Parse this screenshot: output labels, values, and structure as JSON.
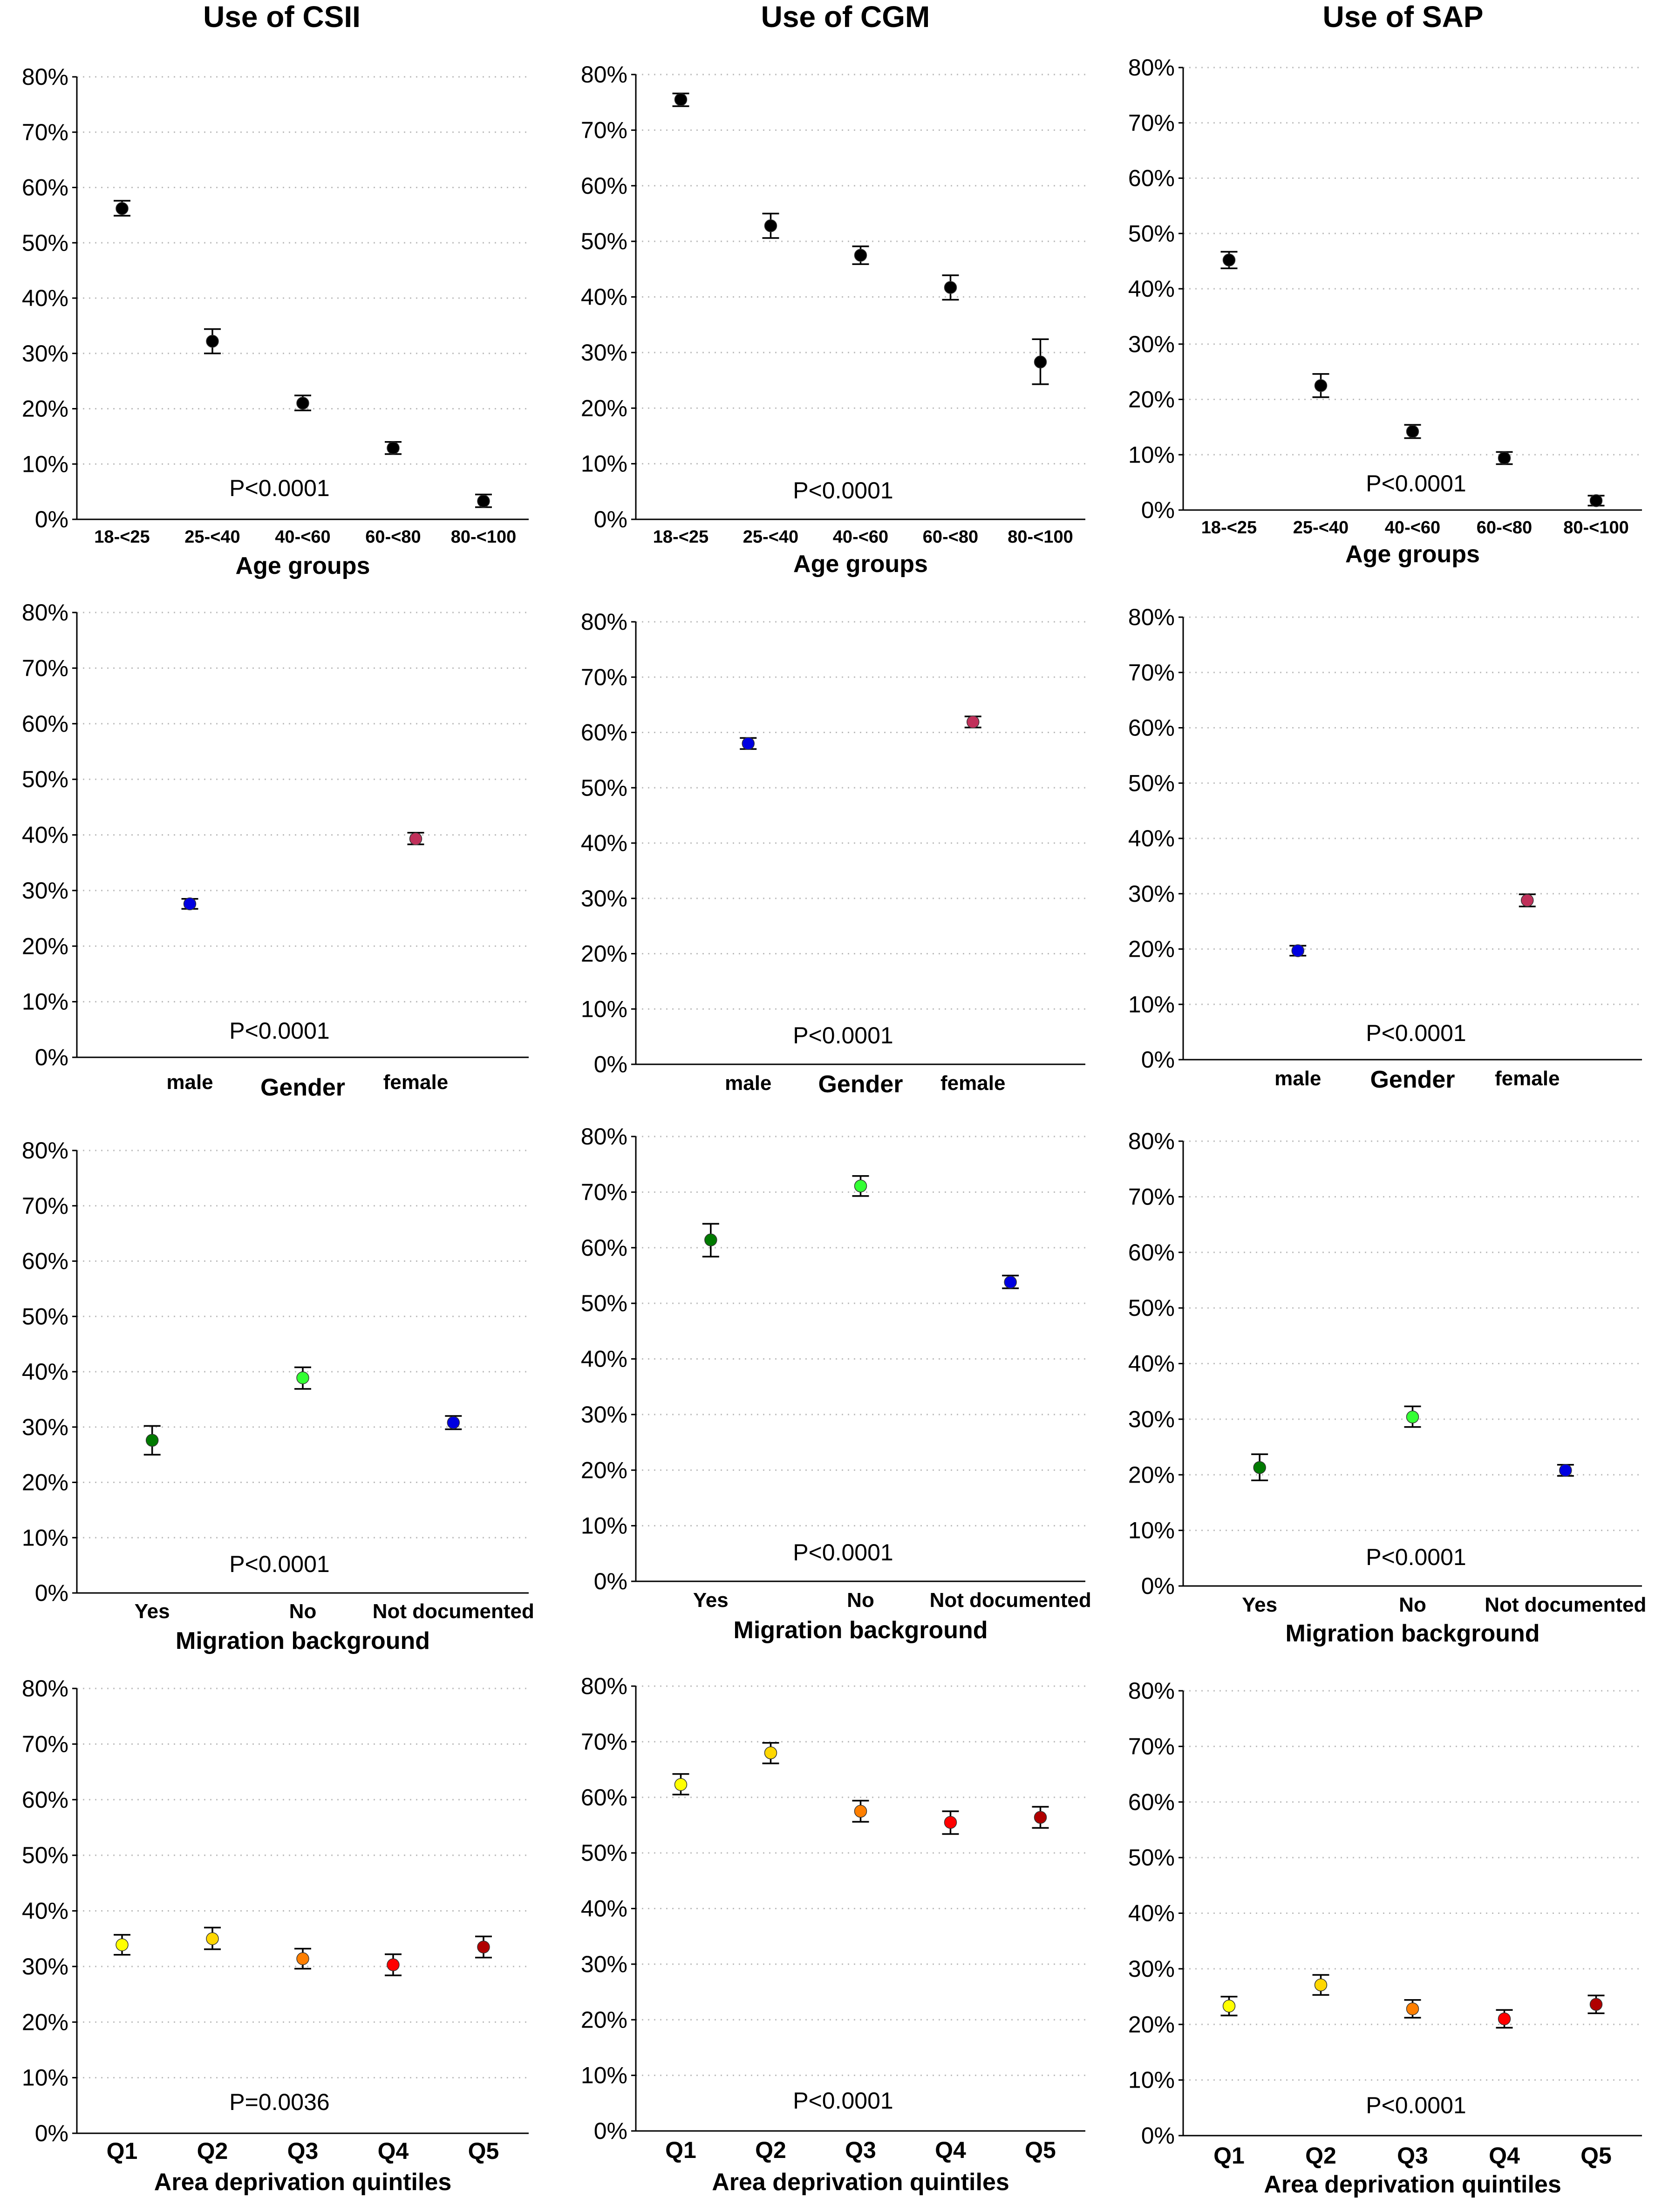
{
  "figure": {
    "column_titles": [
      "Use of CSII",
      "Use of CGM",
      "Use of SAP"
    ]
  },
  "chart_data": [
    {
      "type": "scatter",
      "panel": "CSII-age",
      "title": "Use of CSII",
      "xlabel": "Age groups",
      "ylim": [
        0,
        80
      ],
      "yticks": [
        "0%",
        "10%",
        "20%",
        "30%",
        "40%",
        "50%",
        "60%",
        "70%",
        "80%"
      ],
      "categories": [
        "18-<25",
        "25-<40",
        "40-<60",
        "60-<80",
        "80-<100"
      ],
      "values": [
        56.2,
        32.2,
        21.0,
        12.9,
        3.3
      ],
      "lower": [
        54.9,
        30.0,
        19.7,
        11.8,
        2.2
      ],
      "upper": [
        57.6,
        34.4,
        22.4,
        14.0,
        4.5
      ],
      "colors": [
        "#000000",
        "#000000",
        "#000000",
        "#000000",
        "#000000"
      ],
      "pvalue": "P<0.0001"
    },
    {
      "type": "scatter",
      "panel": "CGM-age",
      "title": "Use of CGM",
      "xlabel": "Age groups",
      "ylim": [
        0,
        80
      ],
      "yticks": [
        "0%",
        "10%",
        "20%",
        "30%",
        "40%",
        "50%",
        "60%",
        "70%",
        "80%"
      ],
      "categories": [
        "18-<25",
        "25-<40",
        "40-<60",
        "60-<80",
        "80-<100"
      ],
      "values": [
        75.5,
        52.8,
        47.5,
        41.7,
        28.3
      ],
      "lower": [
        74.3,
        50.6,
        45.9,
        39.5,
        24.3
      ],
      "upper": [
        76.6,
        55.0,
        49.1,
        43.9,
        32.4
      ],
      "colors": [
        "#000000",
        "#000000",
        "#000000",
        "#000000",
        "#000000"
      ],
      "pvalue": "P<0.0001"
    },
    {
      "type": "scatter",
      "panel": "SAP-age",
      "title": "Use of SAP",
      "xlabel": "Age groups",
      "ylim": [
        0,
        80
      ],
      "yticks": [
        "0%",
        "10%",
        "20%",
        "30%",
        "40%",
        "50%",
        "60%",
        "70%",
        "80%"
      ],
      "categories": [
        "18-<25",
        "25-<40",
        "40-<60",
        "60-<80",
        "80-<100"
      ],
      "values": [
        45.2,
        22.5,
        14.2,
        9.4,
        1.7
      ],
      "lower": [
        43.7,
        20.4,
        13.0,
        8.3,
        0.8
      ],
      "upper": [
        46.7,
        24.6,
        15.4,
        10.5,
        2.6
      ],
      "colors": [
        "#000000",
        "#000000",
        "#000000",
        "#000000",
        "#000000"
      ],
      "pvalue": "P<0.0001"
    },
    {
      "type": "scatter",
      "panel": "CSII-gender",
      "xlabel": "Gender",
      "ylim": [
        0,
        80
      ],
      "yticks": [
        "0%",
        "10%",
        "20%",
        "30%",
        "40%",
        "50%",
        "60%",
        "70%",
        "80%"
      ],
      "categories": [
        "male",
        "female"
      ],
      "values": [
        27.6,
        39.3
      ],
      "lower": [
        26.7,
        38.3
      ],
      "upper": [
        28.5,
        40.4
      ],
      "colors": [
        "#0000e0",
        "#c0305a"
      ],
      "pvalue": "P<0.0001"
    },
    {
      "type": "scatter",
      "panel": "CGM-gender",
      "xlabel": "Gender",
      "ylim": [
        0,
        80
      ],
      "yticks": [
        "0%",
        "10%",
        "20%",
        "30%",
        "40%",
        "50%",
        "60%",
        "70%",
        "80%"
      ],
      "categories": [
        "male",
        "female"
      ],
      "values": [
        58.0,
        61.9
      ],
      "lower": [
        57.0,
        60.9
      ],
      "upper": [
        59.0,
        62.9
      ],
      "colors": [
        "#0000e0",
        "#c0305a"
      ],
      "pvalue": "P<0.0001"
    },
    {
      "type": "scatter",
      "panel": "SAP-gender",
      "xlabel": "Gender",
      "ylim": [
        0,
        80
      ],
      "yticks": [
        "0%",
        "10%",
        "20%",
        "30%",
        "40%",
        "50%",
        "60%",
        "70%",
        "80%"
      ],
      "categories": [
        "male",
        "female"
      ],
      "values": [
        19.7,
        28.8
      ],
      "lower": [
        18.8,
        27.7
      ],
      "upper": [
        20.6,
        29.9
      ],
      "colors": [
        "#0000e0",
        "#c0305a"
      ],
      "pvalue": "P<0.0001"
    },
    {
      "type": "scatter",
      "panel": "CSII-migration",
      "xlabel": "Migration background",
      "ylim": [
        0,
        80
      ],
      "yticks": [
        "0%",
        "10%",
        "20%",
        "30%",
        "40%",
        "50%",
        "60%",
        "70%",
        "80%"
      ],
      "categories": [
        "Yes",
        "No",
        "Not documented"
      ],
      "values": [
        27.6,
        38.9,
        30.8
      ],
      "lower": [
        25.0,
        36.9,
        29.6
      ],
      "upper": [
        30.2,
        40.8,
        32.0
      ],
      "colors": [
        "#007a00",
        "#33ff33",
        "#0000e0"
      ],
      "pvalue": "P<0.0001"
    },
    {
      "type": "scatter",
      "panel": "CGM-migration",
      "xlabel": "Migration background",
      "ylim": [
        0,
        80
      ],
      "yticks": [
        "0%",
        "10%",
        "20%",
        "30%",
        "40%",
        "50%",
        "60%",
        "70%",
        "80%"
      ],
      "categories": [
        "Yes",
        "No",
        "Not documented"
      ],
      "values": [
        61.4,
        71.1,
        53.8
      ],
      "lower": [
        58.4,
        69.3,
        52.7
      ],
      "upper": [
        64.3,
        72.9,
        55.0
      ],
      "colors": [
        "#007a00",
        "#33ff33",
        "#0000e0"
      ],
      "pvalue": "P<0.0001"
    },
    {
      "type": "scatter",
      "panel": "SAP-migration",
      "xlabel": "Migration background",
      "ylim": [
        0,
        80
      ],
      "yticks": [
        "0%",
        "10%",
        "20%",
        "30%",
        "40%",
        "50%",
        "60%",
        "70%",
        "80%"
      ],
      "categories": [
        "Yes",
        "No",
        "Not documented"
      ],
      "values": [
        21.3,
        30.4,
        20.8
      ],
      "lower": [
        19.0,
        28.6,
        19.8
      ],
      "upper": [
        23.7,
        32.3,
        21.8
      ],
      "colors": [
        "#007a00",
        "#33ff33",
        "#0000e0"
      ],
      "pvalue": "P<0.0001"
    },
    {
      "type": "scatter",
      "panel": "CSII-deprivation",
      "xlabel": "Area deprivation quintiles",
      "ylim": [
        0,
        80
      ],
      "yticks": [
        "0%",
        "10%",
        "20%",
        "30%",
        "40%",
        "50%",
        "60%",
        "70%",
        "80%"
      ],
      "categories": [
        "Q1",
        "Q2",
        "Q3",
        "Q4",
        "Q5"
      ],
      "values": [
        33.9,
        35.0,
        31.4,
        30.3,
        33.5
      ],
      "lower": [
        32.1,
        33.1,
        29.6,
        28.4,
        31.6
      ],
      "upper": [
        35.7,
        37.0,
        33.2,
        32.2,
        35.4
      ],
      "colors": [
        "#ffff00",
        "#ffd700",
        "#ff7f00",
        "#ff0000",
        "#b00000"
      ],
      "pvalue": "P=0.0036"
    },
    {
      "type": "scatter",
      "panel": "CGM-deprivation",
      "xlabel": "Area deprivation quintiles",
      "ylim": [
        0,
        80
      ],
      "yticks": [
        "0%",
        "10%",
        "20%",
        "30%",
        "40%",
        "50%",
        "60%",
        "70%",
        "80%"
      ],
      "categories": [
        "Q1",
        "Q2",
        "Q3",
        "Q4",
        "Q5"
      ],
      "values": [
        62.3,
        68.0,
        57.5,
        55.5,
        56.4
      ],
      "lower": [
        60.5,
        66.1,
        55.6,
        53.4,
        54.5
      ],
      "upper": [
        64.2,
        69.8,
        59.4,
        57.5,
        58.3
      ],
      "colors": [
        "#ffff00",
        "#ffd700",
        "#ff7f00",
        "#ff0000",
        "#b00000"
      ],
      "pvalue": "P<0.0001"
    },
    {
      "type": "scatter",
      "panel": "SAP-deprivation",
      "xlabel": "Area deprivation quintiles",
      "ylim": [
        0,
        80
      ],
      "yticks": [
        "0%",
        "10%",
        "20%",
        "30%",
        "40%",
        "50%",
        "60%",
        "70%",
        "80%"
      ],
      "categories": [
        "Q1",
        "Q2",
        "Q3",
        "Q4",
        "Q5"
      ],
      "values": [
        23.3,
        27.1,
        22.8,
        21.0,
        23.6
      ],
      "lower": [
        21.6,
        25.3,
        21.2,
        19.4,
        22.0
      ],
      "upper": [
        25.0,
        28.9,
        24.4,
        22.6,
        25.2
      ],
      "colors": [
        "#ffff00",
        "#ffd700",
        "#ff7f00",
        "#ff0000",
        "#b00000"
      ],
      "pvalue": "P<0.0001"
    }
  ]
}
